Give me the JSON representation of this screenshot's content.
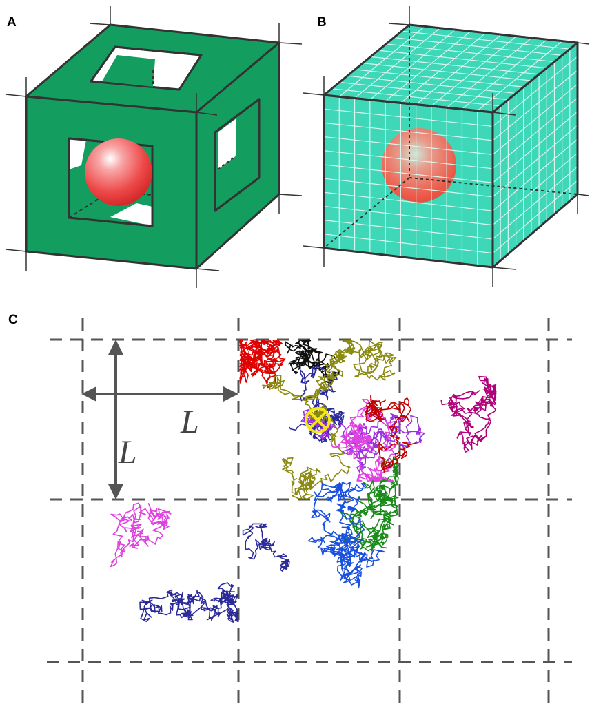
{
  "panels": {
    "a": {
      "label": "A"
    },
    "b": {
      "label": "B"
    },
    "c": {
      "label": "C",
      "x_length_label": "L",
      "y_length_label": "L"
    }
  },
  "colors": {
    "frame_green": "#139e60",
    "water_teal": "#3ed7b8",
    "edge_dark": "#333333",
    "sphere_red": "#f03a3a",
    "grid_dash": "#555555",
    "arrow_gray": "#555555",
    "center_marker": "#f6e51a",
    "trajectories": [
      "#e00000",
      "#101010",
      "#2a2a9a",
      "#9b30e0",
      "#8a8a10",
      "#e040e0",
      "#1a8a1a",
      "#1a50e0",
      "#b0007a",
      "#c00000"
    ]
  },
  "icons": {
    "center_marker": "circle-cross-icon"
  }
}
